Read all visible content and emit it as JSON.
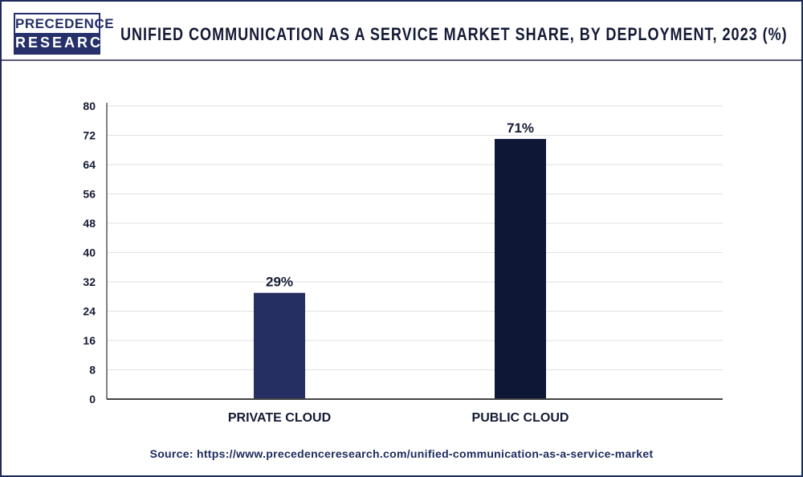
{
  "logo": {
    "line1": "PRECEDENCE",
    "line2": "RESEARCH"
  },
  "header": {
    "title": "UNIFIED COMMUNICATION AS A SERVICE MARKET SHARE, BY DEPLOYMENT, 2023 (%)"
  },
  "source": "Source: https://www.precedenceresearch.com/unified-communication-as-a-service-market",
  "colors": {
    "private_cloud": "#252f62",
    "public_cloud": "#0e1836",
    "frame": "#1c2a5c"
  },
  "chart_data": {
    "type": "bar",
    "title": "UNIFIED COMMUNICATION AS A SERVICE MARKET SHARE, BY DEPLOYMENT, 2023 (%)",
    "categories": [
      "PRIVATE CLOUD",
      "PUBLIC CLOUD"
    ],
    "values": [
      29,
      71
    ],
    "data_labels": [
      "29%",
      "71%"
    ],
    "ylim": [
      0,
      80
    ],
    "yticks": [
      0,
      8,
      16,
      24,
      32,
      40,
      48,
      56,
      64,
      72,
      80
    ],
    "grid": true,
    "xlabel": "",
    "ylabel": ""
  }
}
